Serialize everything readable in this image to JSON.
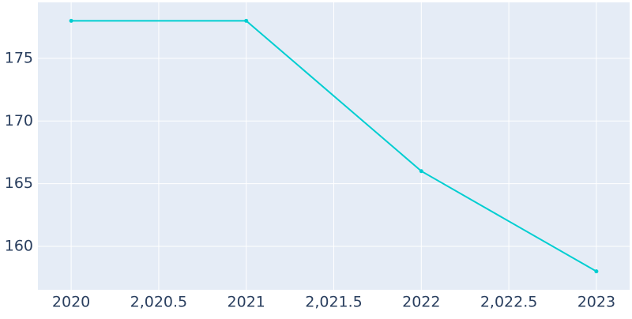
{
  "chart_data": {
    "type": "line",
    "x": [
      2020,
      2021,
      2022,
      2023
    ],
    "series": [
      {
        "color": "#00ced1",
        "values": [
          178,
          178,
          166,
          158
        ]
      }
    ],
    "xlim": [
      2019.81,
      2023.19
    ],
    "xticks": [
      2020,
      {
        "value": 2020.5,
        "label": "2,020.5"
      },
      2021,
      {
        "value": 2021.5,
        "label": "2,021.5"
      },
      2022,
      {
        "value": 2022.5,
        "label": "2,022.5"
      },
      2023
    ],
    "ylim": [
      156.53,
      179.47
    ],
    "yticks": [
      160,
      165,
      170,
      175
    ],
    "grid": true
  }
}
